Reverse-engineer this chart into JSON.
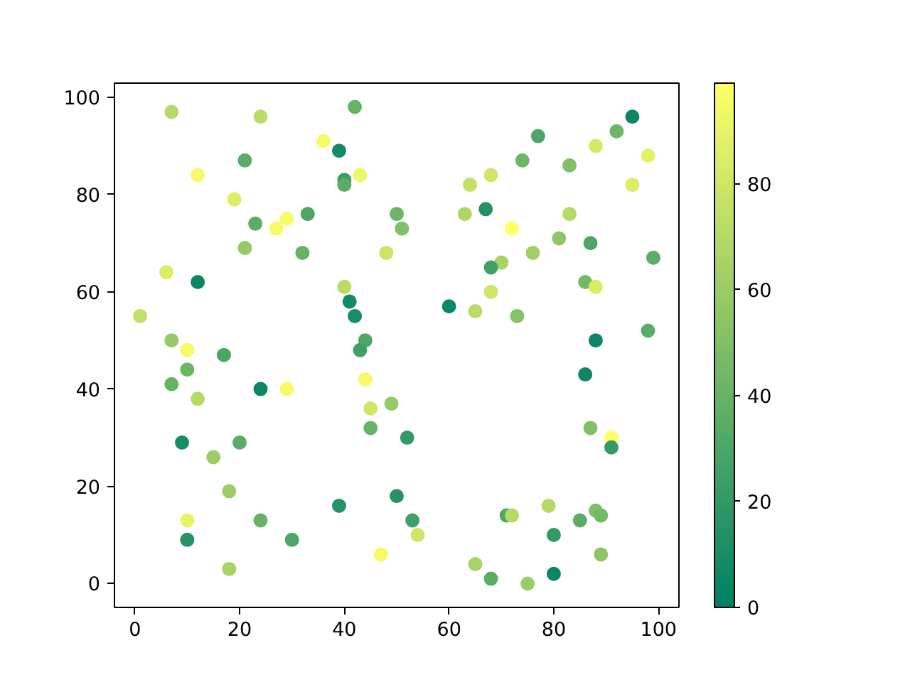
{
  "chart_data": {
    "type": "scatter",
    "marker": "circle",
    "x": [
      7,
      24,
      42,
      36,
      39,
      21,
      12,
      43,
      40,
      40,
      19,
      23,
      29,
      27,
      33,
      21,
      32,
      6,
      12,
      40,
      41,
      42,
      1,
      7,
      10,
      44,
      43,
      50,
      51,
      48,
      95,
      92,
      77,
      88,
      98,
      74,
      83,
      68,
      64,
      95,
      63,
      67,
      83,
      72,
      81,
      87,
      76,
      99,
      70,
      68,
      86,
      88,
      68,
      60,
      65,
      73,
      88,
      98,
      17,
      10,
      7,
      12,
      24,
      29,
      44,
      45,
      49,
      45,
      9,
      20,
      15,
      18,
      50,
      39,
      10,
      24,
      10,
      30,
      47,
      18,
      86,
      52,
      87,
      91,
      91,
      53,
      54,
      71,
      72,
      79,
      85,
      88,
      89,
      80,
      89,
      65,
      68,
      75,
      80
    ],
    "values": [
      97,
      96,
      98,
      91,
      89,
      87,
      84,
      84,
      83,
      82,
      79,
      74,
      75,
      73,
      76,
      69,
      68,
      64,
      62,
      61,
      58,
      55,
      55,
      50,
      48,
      50,
      48,
      76,
      73,
      68,
      96,
      93,
      92,
      90,
      88,
      87,
      86,
      84,
      82,
      82,
      76,
      77,
      76,
      73,
      71,
      70,
      68,
      67,
      66,
      65,
      62,
      61,
      60,
      57,
      56,
      55,
      50,
      52,
      47,
      44,
      41,
      38,
      40,
      40,
      42,
      36,
      37,
      32,
      29,
      29,
      26,
      19,
      18,
      16,
      13,
      13,
      9,
      9,
      6,
      3,
      43,
      30,
      32,
      30,
      28,
      13,
      10,
      14,
      14,
      16,
      13,
      15,
      14,
      10,
      6,
      4,
      1,
      0,
      2
    ],
    "cvalues": [
      70,
      72,
      40,
      95,
      8,
      35,
      95,
      92,
      22,
      35,
      85,
      35,
      95,
      95,
      30,
      58,
      40,
      85,
      5,
      72,
      8,
      10,
      75,
      58,
      95,
      30,
      25,
      42,
      50,
      78,
      5,
      42,
      30,
      82,
      88,
      42,
      50,
      80,
      75,
      85,
      68,
      15,
      70,
      99,
      55,
      30,
      62,
      35,
      65,
      25,
      45,
      85,
      80,
      5,
      72,
      52,
      5,
      35,
      30,
      42,
      40,
      70,
      5,
      95,
      95,
      80,
      58,
      40,
      10,
      35,
      60,
      60,
      15,
      15,
      90,
      40,
      15,
      30,
      95,
      65,
      5,
      20,
      50,
      99,
      20,
      25,
      80,
      30,
      70,
      70,
      35,
      50,
      45,
      20,
      55,
      65,
      35,
      60,
      5
    ],
    "clim": [
      0,
      99
    ],
    "cticks": [
      0,
      20,
      40,
      60,
      80
    ],
    "xlim": [
      -3.9,
      103.9
    ],
    "ylim": [
      -4.9,
      102.9
    ],
    "xticks": [
      0,
      20,
      40,
      60,
      80,
      100
    ],
    "yticks": [
      0,
      20,
      40,
      60,
      80,
      100
    ],
    "grid": false
  }
}
